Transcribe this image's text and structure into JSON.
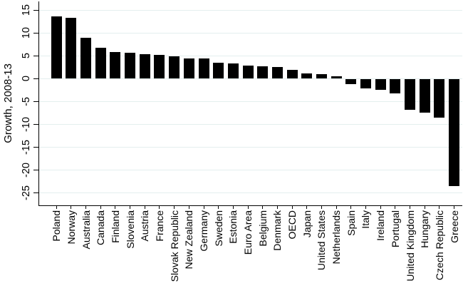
{
  "chart_data": {
    "type": "bar",
    "title": "",
    "xlabel": "",
    "ylabel": "Growth, 2008-13",
    "categories": [
      "Poland",
      "Norway",
      "Australia",
      "Canada",
      "Finland",
      "Slovenia",
      "Austria",
      "France",
      "Slovak Republic",
      "New Zealand",
      "Germany",
      "Sweden",
      "Estonia",
      "Euro Area",
      "Belgium",
      "Denmark",
      "OECD",
      "Japan",
      "United States",
      "Netherlands",
      "Spain",
      "Italy",
      "Ireland",
      "Portugal",
      "United Kingdom",
      "Hungary",
      "Czech Republic",
      "Greece"
    ],
    "values": [
      13.7,
      13.3,
      9.0,
      6.8,
      5.8,
      5.6,
      5.4,
      5.2,
      4.9,
      4.5,
      4.4,
      3.5,
      3.4,
      2.9,
      2.7,
      2.5,
      2.0,
      1.2,
      1.0,
      0.6,
      -1.1,
      -1.9,
      -2.2,
      -3.1,
      -6.6,
      -7.3,
      -8.3,
      -23.3
    ],
    "yticks": [
      15,
      10,
      5,
      0,
      -5,
      -10,
      -15,
      -20,
      -25
    ],
    "ylim": [
      -27.6,
      16.9
    ],
    "grid": true,
    "legend": "none",
    "bar_color": "#000000",
    "gridline_color": "#e4efee",
    "axis_color": "#000000",
    "text_color": "#000000",
    "background_color": "#ffffff"
  }
}
